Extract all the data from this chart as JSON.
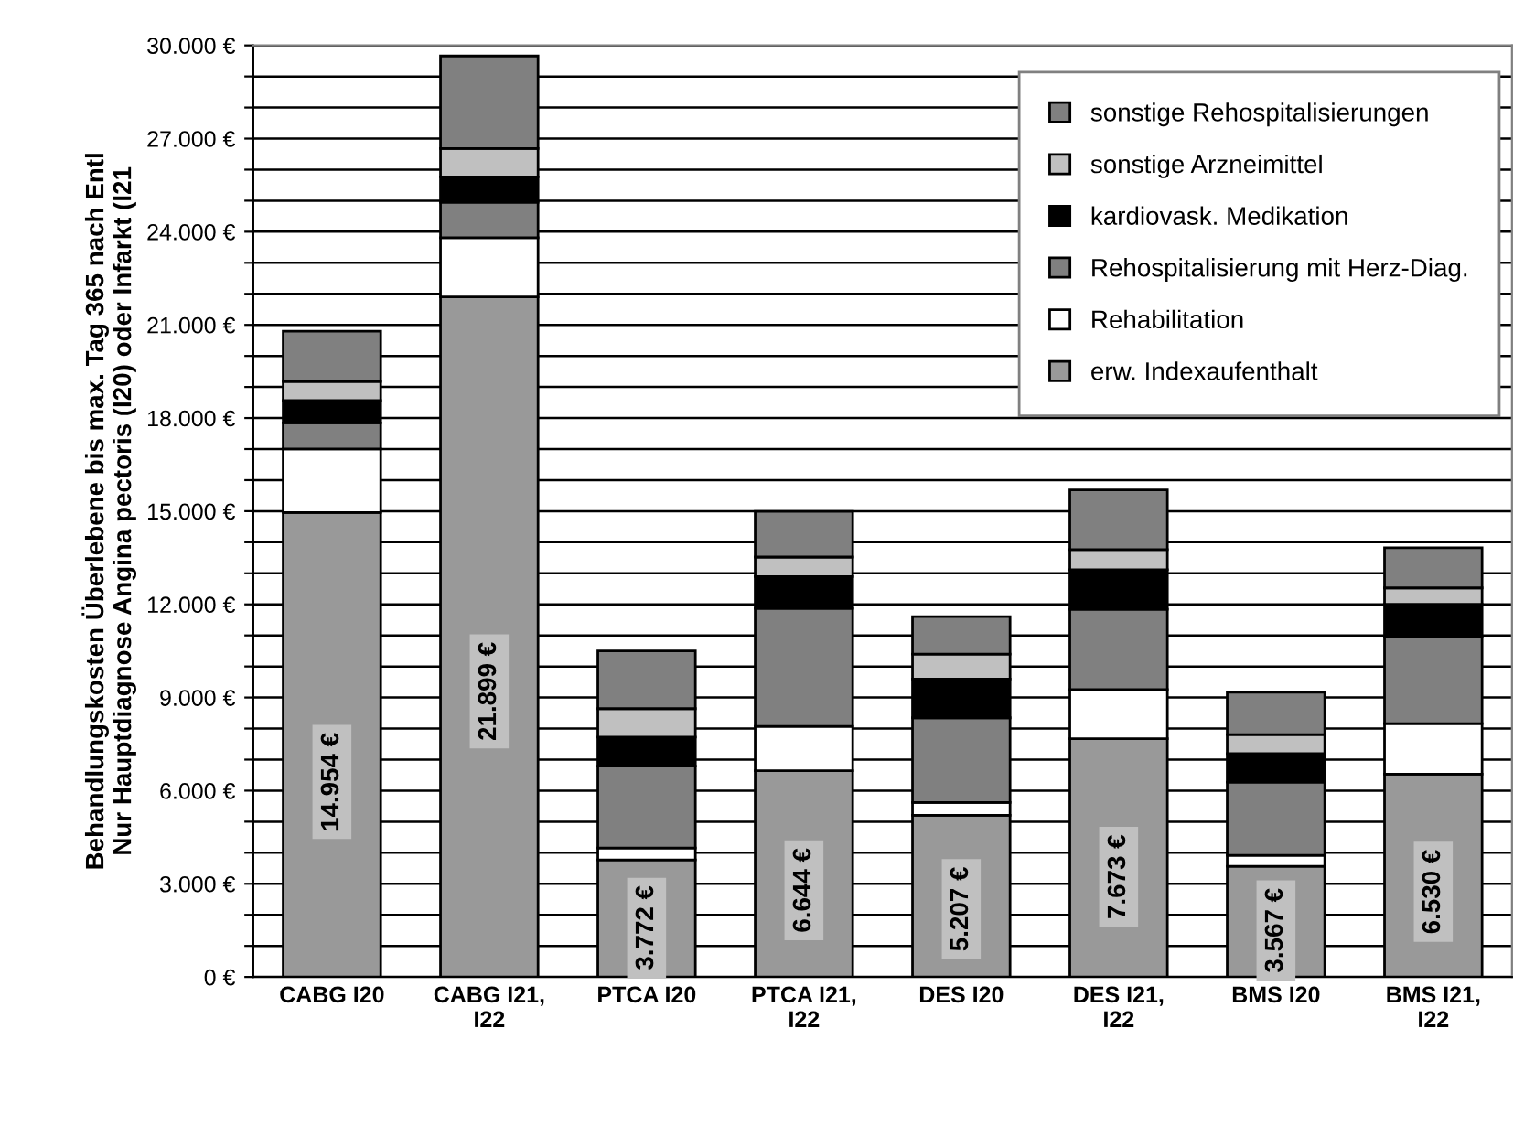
{
  "chart_data": {
    "type": "bar",
    "stacked": true,
    "ylabel": "Behandlungskosten Überlebene bis max. Tag 365 nach Entl\nNur Hauptdiagnose Angina pectoris (I20) oder Infarkt (I21",
    "categories": [
      "CABG I20",
      "CABG I21,\nI22",
      "PTCA I20",
      "PTCA I21,\nI22",
      "DES I20",
      "DES I21,\nI22",
      "BMS I20",
      "BMS I21,\nI22"
    ],
    "series": [
      {
        "name": "erw. Indexaufenthalt",
        "color": "#999999",
        "values": [
          14954,
          21899,
          3772,
          6644,
          5207,
          7673,
          3567,
          6530
        ],
        "value_labels": [
          "14.954 €",
          "21.899 €",
          "3.772 €",
          "6.644 €",
          "5.207 €",
          "7.673 €",
          "3.567 €",
          "6.530 €"
        ]
      },
      {
        "name": "Rehabilitation",
        "color": "#ffffff",
        "values": [
          2050,
          1910,
          380,
          1430,
          410,
          1580,
          350,
          1630
        ]
      },
      {
        "name": "Rehospitalisierung mit Herz-Diag.",
        "color": "#808080",
        "values": [
          840,
          1140,
          2640,
          3800,
          2730,
          2590,
          2360,
          2780
        ]
      },
      {
        "name": "kardiovask. Medikation",
        "color": "#000000",
        "values": [
          720,
          820,
          930,
          1020,
          1250,
          1270,
          920,
          1060
        ]
      },
      {
        "name": "sonstige Arzneimittel",
        "color": "#c0c0c0",
        "values": [
          610,
          910,
          920,
          630,
          800,
          650,
          610,
          530
        ]
      },
      {
        "name": "sonstige Rehospitalisierungen",
        "color": "#808080",
        "values": [
          1620,
          2980,
          1860,
          1470,
          1210,
          1920,
          1360,
          1290
        ]
      }
    ],
    "ylim": [
      0,
      30000
    ],
    "yticks": [
      {
        "value": 0,
        "label": "0 €"
      },
      {
        "value": 1000,
        "label": null
      },
      {
        "value": 2000,
        "label": null
      },
      {
        "value": 3000,
        "label": "3.000 €"
      },
      {
        "value": 4000,
        "label": null
      },
      {
        "value": 5000,
        "label": null
      },
      {
        "value": 6000,
        "label": "6.000 €"
      },
      {
        "value": 7000,
        "label": null
      },
      {
        "value": 8000,
        "label": null
      },
      {
        "value": 9000,
        "label": "9.000 €"
      },
      {
        "value": 10000,
        "label": null
      },
      {
        "value": 11000,
        "label": null
      },
      {
        "value": 12000,
        "label": "12.000 €"
      },
      {
        "value": 13000,
        "label": null
      },
      {
        "value": 14000,
        "label": null
      },
      {
        "value": 15000,
        "label": "15.000 €"
      },
      {
        "value": 16000,
        "label": null
      },
      {
        "value": 17000,
        "label": null
      },
      {
        "value": 18000,
        "label": "18.000 €"
      },
      {
        "value": 19000,
        "label": null
      },
      {
        "value": 20000,
        "label": null
      },
      {
        "value": 21000,
        "label": "21.000 €"
      },
      {
        "value": 22000,
        "label": null
      },
      {
        "value": 23000,
        "label": null
      },
      {
        "value": 24000,
        "label": "24.000 €"
      },
      {
        "value": 25000,
        "label": null
      },
      {
        "value": 26000,
        "label": null
      },
      {
        "value": 27000,
        "label": "27.000 €"
      },
      {
        "value": 28000,
        "label": null
      },
      {
        "value": 29000,
        "label": null
      },
      {
        "value": 30000,
        "label": "30.000 €"
      }
    ],
    "grid": "y",
    "legend": "top right"
  }
}
